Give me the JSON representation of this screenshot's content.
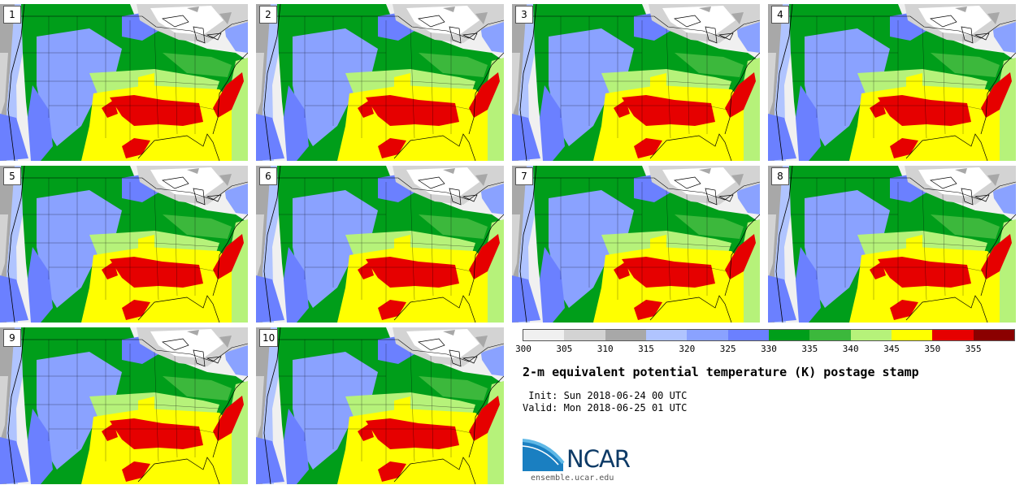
{
  "panels": [
    {
      "label": "1"
    },
    {
      "label": "2"
    },
    {
      "label": "3"
    },
    {
      "label": "4"
    },
    {
      "label": "5"
    },
    {
      "label": "6"
    },
    {
      "label": "7"
    },
    {
      "label": "8"
    },
    {
      "label": "9"
    },
    {
      "label": "10"
    }
  ],
  "legend": {
    "ticks": [
      "300",
      "305",
      "310",
      "315",
      "320",
      "325",
      "330",
      "335",
      "340",
      "345",
      "350",
      "355"
    ],
    "colors": [
      "#f0f0f0",
      "#d3d3d3",
      "#a8a8a8",
      "#b0c4ff",
      "#8aa2ff",
      "#6b80ff",
      "#009e1a",
      "#3cb83c",
      "#b6f27a",
      "#ffff00",
      "#e60000",
      "#8b0000"
    ]
  },
  "title": "2-m equivalent potential temperature (K) postage stamp",
  "init": " Init: Sun 2018-06-24 00 UTC",
  "valid": "Valid: Mon 2018-06-25 01 UTC",
  "logo_text": "NCAR",
  "site": "ensemble.ucar.edu"
}
